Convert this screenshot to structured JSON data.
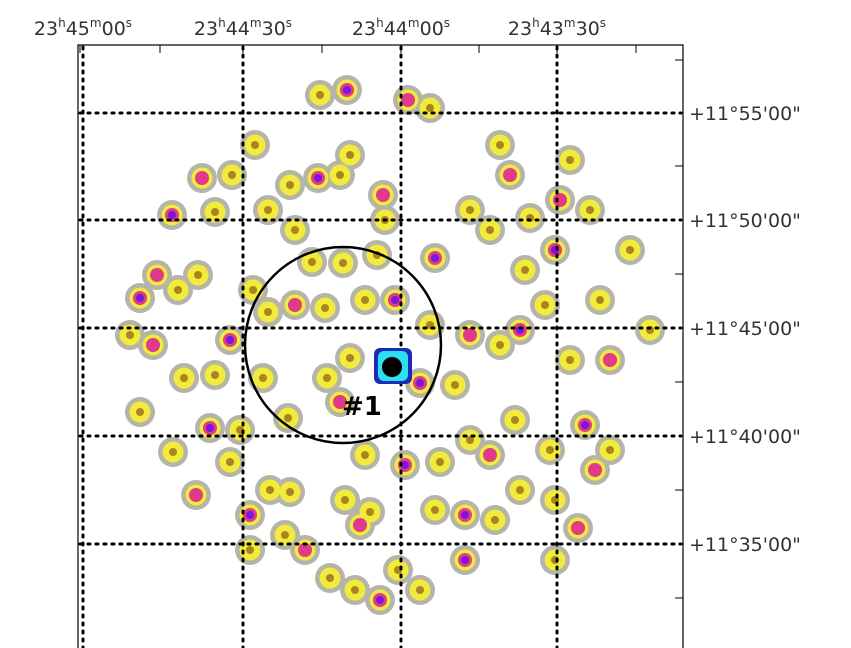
{
  "ra_labels": [
    [
      "23",
      "h",
      "45",
      "m",
      "00",
      "s"
    ],
    [
      "23",
      "h",
      "44",
      "m",
      "30",
      "s"
    ],
    [
      "23",
      "h",
      "44",
      "m",
      "00",
      "s"
    ],
    [
      "23",
      "h",
      "43",
      "m",
      "30",
      "s"
    ]
  ],
  "dec_labels": [
    "+11°55'00\"",
    "+11°50'00\"",
    "+11°45'00\"",
    "+11°40'00\"",
    "+11°35'00\""
  ],
  "annotation": "#1"
}
